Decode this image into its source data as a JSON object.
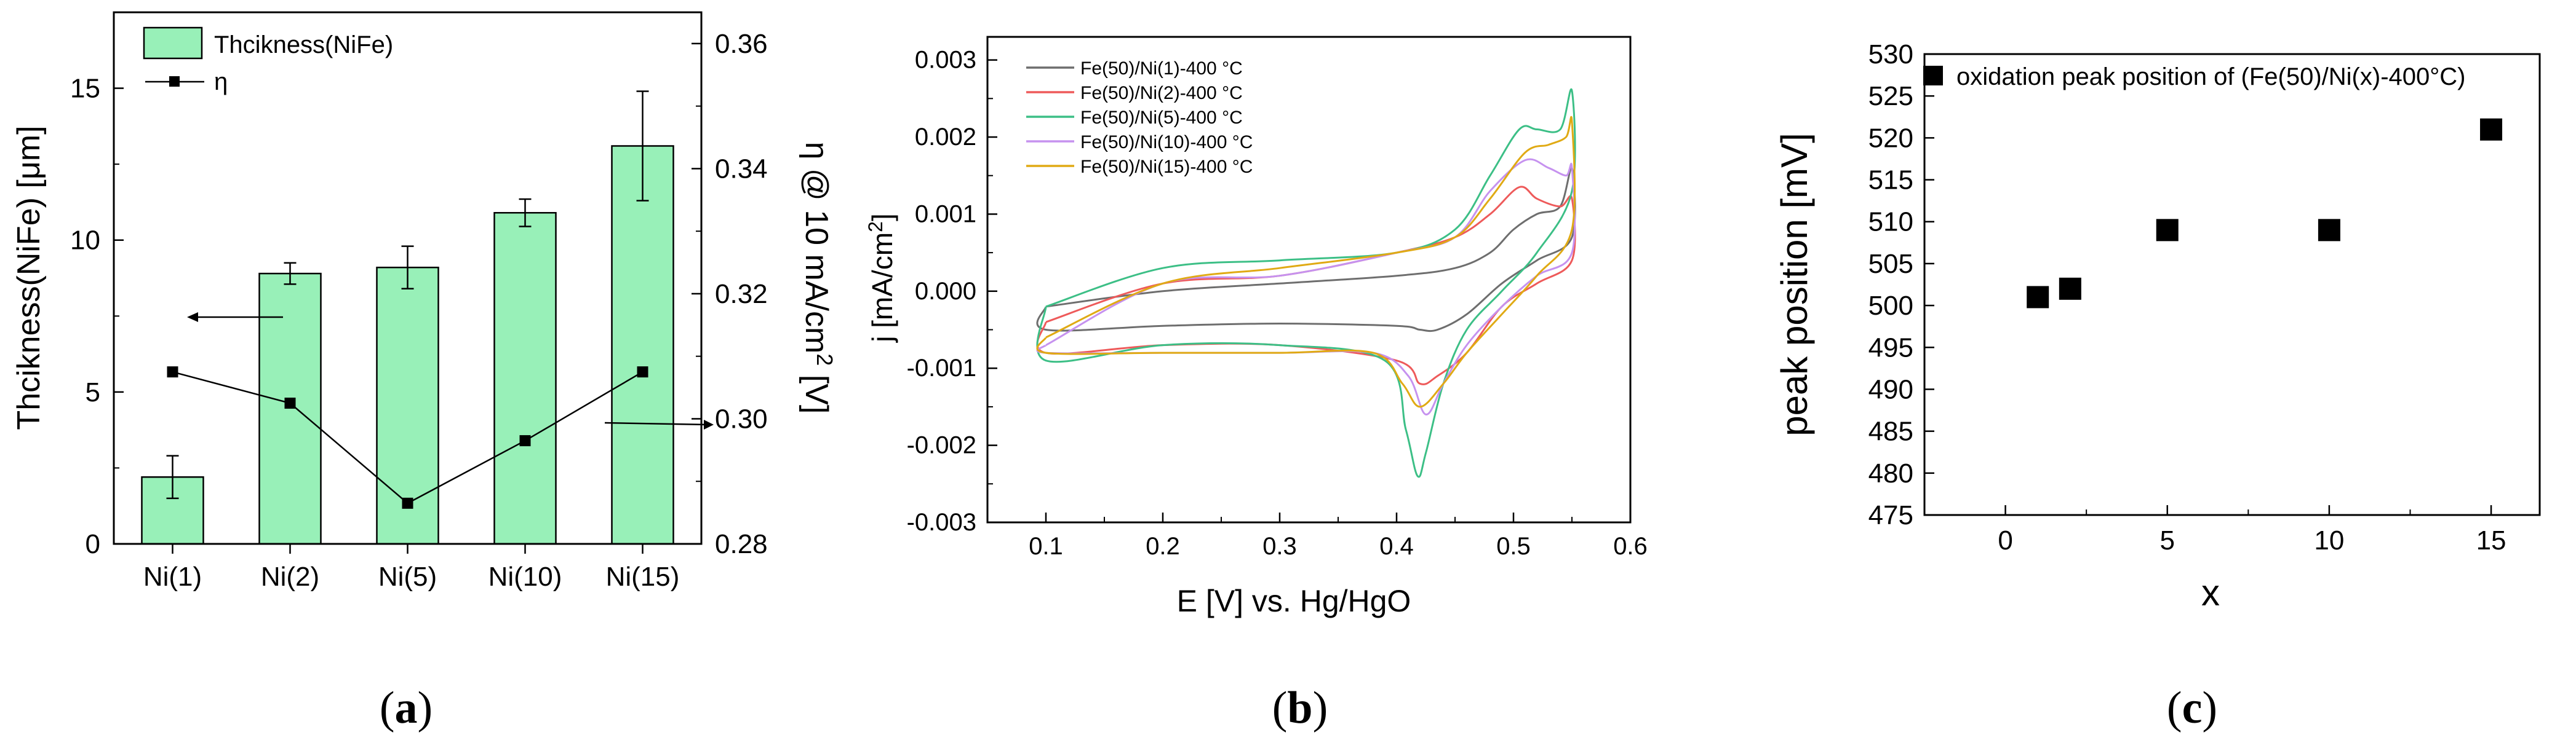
{
  "chart_data": [
    {
      "id": "a",
      "panel_label": "(a)",
      "panel_letter": "a",
      "type": "bar",
      "title": "",
      "categories": [
        "Ni(1)",
        "Ni(2)",
        "Ni(5)",
        "Ni(10)",
        "Ni(15)"
      ],
      "bar_series": {
        "name": "Thcikness(NiFe)",
        "values": [
          2.2,
          8.9,
          9.1,
          10.9,
          13.1
        ],
        "errors": [
          0.7,
          0.35,
          0.7,
          0.45,
          1.8
        ],
        "color": "#98f0b8"
      },
      "line_series": {
        "name": "η",
        "values": [
          0.3075,
          0.3025,
          0.2865,
          0.2965,
          0.3075
        ]
      },
      "ylabel_left": "Thcikness(NiFe) [μm]",
      "ylim_left": [
        0,
        17.5
      ],
      "yticks_left": [
        "0",
        "5",
        "10",
        "15"
      ],
      "ylabel_right_main": "η @ 10 mA/cm",
      "ylabel_right_sup": "2",
      "ylabel_right_tail": " [V]",
      "ylim_right": [
        0.28,
        0.365
      ],
      "yticks_right": [
        "0.28",
        "0.30",
        "0.32",
        "0.34",
        "0.36"
      ],
      "legend_position": "top-left"
    },
    {
      "id": "b",
      "panel_label": "(b)",
      "panel_letter": "b",
      "type": "line",
      "title": "",
      "xlabel": "E [V] vs. Hg/HgO",
      "ylabel_main": "j [mA/cm",
      "ylabel_sup": "2",
      "ylabel_tail": "]",
      "xlim": [
        0.05,
        0.6
      ],
      "ylim": [
        -0.003,
        0.0033
      ],
      "xticks": [
        "0.1",
        "0.2",
        "0.3",
        "0.4",
        "0.5",
        "0.6"
      ],
      "yticks": [
        "-0.003",
        "-0.002",
        "-0.001",
        "0.000",
        "0.001",
        "0.002",
        "0.003"
      ],
      "legend_position": "top-left",
      "series": [
        {
          "name": "Fe(50)/Ni(1)-400 °C",
          "color": "#6e6e6e",
          "upper": [
            [
              0.1,
              -0.0002
            ],
            [
              0.2,
              0.0
            ],
            [
              0.3,
              0.0001
            ],
            [
              0.4,
              0.0002
            ],
            [
              0.45,
              0.0003
            ],
            [
              0.48,
              0.0005
            ],
            [
              0.5,
              0.0008
            ],
            [
              0.52,
              0.001
            ],
            [
              0.54,
              0.0011
            ],
            [
              0.55,
              0.0016
            ]
          ],
          "lower": [
            [
              0.55,
              0.0007
            ],
            [
              0.52,
              0.0004
            ],
            [
              0.49,
              0.0001
            ],
            [
              0.46,
              -0.0003
            ],
            [
              0.435,
              -0.0005
            ],
            [
              0.42,
              -0.0005
            ],
            [
              0.4,
              -0.00045
            ],
            [
              0.3,
              -0.00042
            ],
            [
              0.2,
              -0.00045
            ],
            [
              0.1,
              -0.0005
            ]
          ]
        },
        {
          "name": "Fe(50)/Ni(2)-400 °C",
          "color": "#ee5a5a",
          "upper": [
            [
              0.1,
              -0.0004
            ],
            [
              0.2,
              0.0001
            ],
            [
              0.3,
              0.0002
            ],
            [
              0.4,
              0.0005
            ],
            [
              0.45,
              0.0007
            ],
            [
              0.48,
              0.001
            ],
            [
              0.505,
              0.00135
            ],
            [
              0.52,
              0.0012
            ],
            [
              0.54,
              0.0011
            ],
            [
              0.55,
              0.0012
            ]
          ],
          "lower": [
            [
              0.55,
              0.0004
            ],
            [
              0.52,
              0.0001
            ],
            [
              0.49,
              -0.0002
            ],
            [
              0.46,
              -0.0008
            ],
            [
              0.435,
              -0.0011
            ],
            [
              0.42,
              -0.0012
            ],
            [
              0.4,
              -0.0009
            ],
            [
              0.3,
              -0.0007
            ],
            [
              0.2,
              -0.0007
            ],
            [
              0.1,
              -0.0008
            ]
          ]
        },
        {
          "name": "Fe(50)/Ni(5)-400 °C",
          "color": "#3cbf86",
          "upper": [
            [
              0.1,
              -0.0002
            ],
            [
              0.2,
              0.0003
            ],
            [
              0.3,
              0.0004
            ],
            [
              0.4,
              0.0005
            ],
            [
              0.45,
              0.0008
            ],
            [
              0.48,
              0.0015
            ],
            [
              0.505,
              0.0021
            ],
            [
              0.52,
              0.0021
            ],
            [
              0.54,
              0.0021
            ],
            [
              0.55,
              0.0026
            ]
          ],
          "lower": [
            [
              0.55,
              0.0013
            ],
            [
              0.52,
              0.0005
            ],
            [
              0.49,
              0.0
            ],
            [
              0.46,
              -0.0005
            ],
            [
              0.44,
              -0.0012
            ],
            [
              0.425,
              -0.0021
            ],
            [
              0.418,
              -0.0024
            ],
            [
              0.408,
              -0.0018
            ],
            [
              0.39,
              -0.0009
            ],
            [
              0.3,
              -0.0007
            ],
            [
              0.2,
              -0.0007
            ],
            [
              0.1,
              -0.0009
            ]
          ]
        },
        {
          "name": "Fe(50)/Ni(10)-400 °C",
          "color": "#c692ef",
          "upper": [
            [
              0.1,
              -0.0007
            ],
            [
              0.2,
              0.0001
            ],
            [
              0.3,
              0.0002
            ],
            [
              0.4,
              0.0005
            ],
            [
              0.45,
              0.0007
            ],
            [
              0.48,
              0.0013
            ],
            [
              0.51,
              0.0017
            ],
            [
              0.53,
              0.0016
            ],
            [
              0.545,
              0.0015
            ],
            [
              0.55,
              0.0016
            ]
          ],
          "lower": [
            [
              0.55,
              0.0005
            ],
            [
              0.52,
              0.0002
            ],
            [
              0.49,
              -0.0002
            ],
            [
              0.46,
              -0.0007
            ],
            [
              0.44,
              -0.0012
            ],
            [
              0.425,
              -0.0016
            ],
            [
              0.41,
              -0.0011
            ],
            [
              0.38,
              -0.0008
            ],
            [
              0.3,
              -0.0008
            ],
            [
              0.2,
              -0.0008
            ],
            [
              0.1,
              -0.0008
            ]
          ]
        },
        {
          "name": "Fe(50)/Ni(15)-400 °C",
          "color": "#e0aa14",
          "upper": [
            [
              0.1,
              -0.0006
            ],
            [
              0.2,
              0.0001
            ],
            [
              0.3,
              0.0003
            ],
            [
              0.4,
              0.0005
            ],
            [
              0.45,
              0.0007
            ],
            [
              0.48,
              0.0012
            ],
            [
              0.51,
              0.0018
            ],
            [
              0.53,
              0.0019
            ],
            [
              0.545,
              0.002
            ],
            [
              0.55,
              0.0022
            ]
          ],
          "lower": [
            [
              0.55,
              0.0008
            ],
            [
              0.52,
              0.0002
            ],
            [
              0.49,
              -0.0003
            ],
            [
              0.46,
              -0.0008
            ],
            [
              0.44,
              -0.0012
            ],
            [
              0.42,
              -0.0015
            ],
            [
              0.405,
              -0.0012
            ],
            [
              0.38,
              -0.0008
            ],
            [
              0.3,
              -0.0008
            ],
            [
              0.2,
              -0.0008
            ],
            [
              0.1,
              -0.0008
            ]
          ]
        }
      ]
    },
    {
      "id": "c",
      "panel_label": "(c)",
      "panel_letter": "c",
      "type": "scatter",
      "title": "",
      "xlabel": "x",
      "ylabel": "peak position [mV]",
      "xlim": [
        -2.5,
        16.5
      ],
      "ylim": [
        475,
        530
      ],
      "xticks": [
        "0",
        "5",
        "10",
        "15"
      ],
      "yticks": [
        "475",
        "480",
        "485",
        "490",
        "495",
        "500",
        "505",
        "510",
        "515",
        "520",
        "525",
        "530"
      ],
      "legend_position": "top",
      "series": [
        {
          "name": "oxidation peak position of (Fe(50)/Ni(x)-400°C)",
          "x": [
            1,
            2,
            5,
            10,
            15
          ],
          "y": [
            501,
            502,
            509,
            509,
            521
          ]
        }
      ]
    }
  ]
}
